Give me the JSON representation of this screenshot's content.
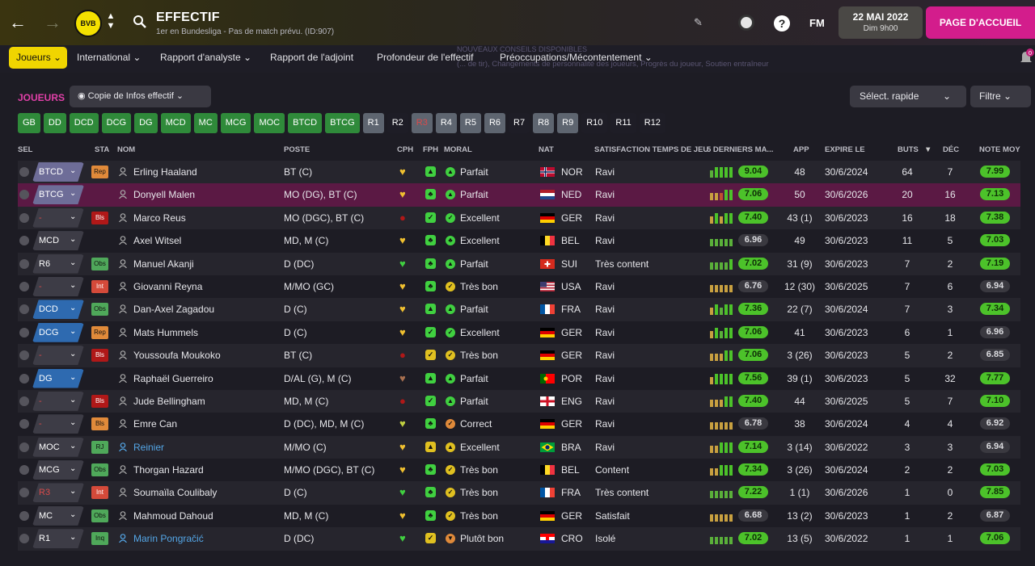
{
  "header": {
    "title": "EFFECTIF",
    "subtitle": "1er en Bundesliga - Pas de match prévu. (ID:907)",
    "crest_text": "BVB",
    "date": "22 MAI 2022",
    "time": "Dim 9h00",
    "home_button": "PAGE D'ACCUEIL",
    "fm_logo": "FM",
    "help_label": "?"
  },
  "menu": {
    "active": "Joueurs",
    "items": [
      "International",
      "Rapport d'analyste",
      "Rapport de l'adjoint",
      "Profondeur de l'effectif",
      "Préoccupations/Mécontentement"
    ],
    "ghost1": "NOUVEAUX CONSEILS DISPONIBLES",
    "ghost2": "(... de tir), Changements de personnalité des joueurs, Progrès du joueur, Soutien entraîneur",
    "notification_count": "0"
  },
  "section": {
    "title": "JOUEURS",
    "copy_button": "Copie de Infos effectif",
    "quick_select": "Sélect. rapide",
    "filter": "Filtre"
  },
  "position_chips": [
    {
      "label": "GB",
      "style": "g"
    },
    {
      "label": "DD",
      "style": "g"
    },
    {
      "label": "DCD",
      "style": "g"
    },
    {
      "label": "DCG",
      "style": "g"
    },
    {
      "label": "DG",
      "style": "g"
    },
    {
      "label": "MCD",
      "style": "g"
    },
    {
      "label": "MC",
      "style": "g"
    },
    {
      "label": "MCG",
      "style": "g"
    },
    {
      "label": "MOC",
      "style": "g"
    },
    {
      "label": "BTCD",
      "style": "g"
    },
    {
      "label": "BTCG",
      "style": "g"
    },
    {
      "label": "R1",
      "style": "s"
    },
    {
      "label": "R2",
      "style": "d"
    },
    {
      "label": "R3",
      "style": "r"
    },
    {
      "label": "R4",
      "style": "s"
    },
    {
      "label": "R5",
      "style": "s"
    },
    {
      "label": "R6",
      "style": "s"
    },
    {
      "label": "R7",
      "style": "d"
    },
    {
      "label": "R8",
      "style": "s"
    },
    {
      "label": "R9",
      "style": "s"
    },
    {
      "label": "R10",
      "style": "d"
    },
    {
      "label": "R11",
      "style": "d"
    },
    {
      "label": "R12",
      "style": "d"
    }
  ],
  "columns": {
    "sel": "SEL",
    "sta": "STA",
    "nom": "NOM",
    "poste": "POSTE",
    "cph": "CPH",
    "fph": "FPH",
    "moral": "MORAL",
    "nat": "NAT",
    "sat": "SATISFACTION TEMPS DE JEU",
    "last5": "5 DERNIERS MA...",
    "app": "APP",
    "expire": "EXPIRE LE",
    "buts": "BUTS",
    "dec": "DÉC",
    "note": "NOTE MOY"
  },
  "players": [
    {
      "pos": "BTCD",
      "pos_color": "#6e6d98",
      "sta": "Rep",
      "sta_color": "#e08a3a",
      "name": "Erling Haaland",
      "name_blue": false,
      "poste": "BT (C)",
      "cph": "#f0c030",
      "fph": "#40d040",
      "fph_glyph": "▲",
      "moral_color": "#40d040",
      "moral_glyph": "▲",
      "moral": "Parfait",
      "flag": "nor",
      "nat": "NOR",
      "sat": "Ravi",
      "bars": [
        "#5ab03a",
        "#4cc22a",
        "#4cc22a",
        "#4cc22a",
        "#4cc22a"
      ],
      "rating": "9.04",
      "rating_good": true,
      "app": "48",
      "expire": "30/6/2024",
      "buts": "64",
      "dec": "7",
      "note": "7.99",
      "note_good": true,
      "row": "alt"
    },
    {
      "pos": "BTCG",
      "pos_color": "#6e6d98",
      "sta": "",
      "sta_color": "",
      "name": "Donyell Malen",
      "name_blue": false,
      "poste": "MO (DG), BT (C)",
      "cph": "#f0c030",
      "fph": "#40d040",
      "fph_glyph": "♣",
      "moral_color": "#40d040",
      "moral_glyph": "▲",
      "moral": "Parfait",
      "flag": "ned",
      "nat": "NED",
      "sat": "Ravi",
      "bars": [
        "#c8a040",
        "#c8a040",
        "#c05030",
        "#4cc22a",
        "#4cc22a"
      ],
      "rating": "7.06",
      "rating_good": true,
      "app": "50",
      "expire": "30/6/2026",
      "buts": "20",
      "dec": "16",
      "note": "7.13",
      "note_good": true,
      "row": "sel"
    },
    {
      "pos": "-",
      "pos_color": "#3d3c46",
      "sta": "Bls",
      "sta_color": "#b01818",
      "name": "Marco Reus",
      "name_blue": false,
      "poste": "MO (DGC), BT (C)",
      "cph": "#b01818",
      "fph": "#40d040",
      "fph_glyph": "✓",
      "moral_color": "#40d040",
      "moral_glyph": "✓",
      "moral": "Excellent",
      "flag": "ger",
      "nat": "GER",
      "sat": "Ravi",
      "bars": [
        "#c8a040",
        "#4cc22a",
        "#c8a040",
        "#4cc22a",
        "#4cc22a"
      ],
      "rating": "7.40",
      "rating_good": true,
      "app": "43 (1)",
      "expire": "30/6/2023",
      "buts": "16",
      "dec": "18",
      "note": "7.38",
      "note_good": true,
      "row": "alt"
    },
    {
      "pos": "MCD",
      "pos_color": "#3d3c46",
      "sta": "",
      "sta_color": "",
      "name": "Axel Witsel",
      "name_blue": false,
      "poste": "MD, M (C)",
      "cph": "#f0c030",
      "fph": "#40d040",
      "fph_glyph": "♣",
      "moral_color": "#40d040",
      "moral_glyph": "♣",
      "moral": "Excellent",
      "flag": "bel",
      "nat": "BEL",
      "sat": "Ravi",
      "bars": [
        "#5ab03a",
        "#5ab03a",
        "#5ab03a",
        "#5ab03a",
        "#5ab03a"
      ],
      "rating": "6.96",
      "rating_good": false,
      "app": "49",
      "expire": "30/6/2023",
      "buts": "11",
      "dec": "5",
      "note": "7.03",
      "note_good": true,
      "row": ""
    },
    {
      "pos": "R6",
      "pos_color": "#3d3c46",
      "sta": "Obs",
      "sta_color": "#4fa85a",
      "name": "Manuel Akanji",
      "name_blue": false,
      "poste": "D (DC)",
      "cph": "#40d040",
      "fph": "#40d040",
      "fph_glyph": "♣",
      "moral_color": "#40d040",
      "moral_glyph": "▲",
      "moral": "Parfait",
      "flag": "sui",
      "nat": "SUI",
      "sat": "Très content",
      "bars": [
        "#5ab03a",
        "#5ab03a",
        "#5ab03a",
        "#5ab03a",
        "#4cc22a"
      ],
      "rating": "7.02",
      "rating_good": true,
      "app": "31 (9)",
      "expire": "30/6/2023",
      "buts": "7",
      "dec": "2",
      "note": "7.19",
      "note_good": true,
      "row": "alt"
    },
    {
      "pos": "-",
      "pos_color": "#3d3c46",
      "sta": "Int",
      "sta_color": "#d44a3a",
      "name": "Giovanni Reyna",
      "name_blue": false,
      "poste": "M/MO (GC)",
      "cph": "#f0c030",
      "fph": "#40d040",
      "fph_glyph": "♣",
      "moral_color": "#e0c020",
      "moral_glyph": "✓",
      "moral": "Très bon",
      "flag": "usa",
      "nat": "USA",
      "sat": "Ravi",
      "bars": [
        "#c8a040",
        "#c8a040",
        "#c8a040",
        "#c8a040",
        "#c8a040"
      ],
      "rating": "6.76",
      "rating_good": false,
      "app": "12 (30)",
      "expire": "30/6/2025",
      "buts": "7",
      "dec": "6",
      "note": "6.94",
      "note_good": false,
      "row": ""
    },
    {
      "pos": "DCD",
      "pos_color": "#2e6ab0",
      "sta": "Obs",
      "sta_color": "#4fa85a",
      "name": "Dan-Axel Zagadou",
      "name_blue": false,
      "poste": "D (C)",
      "cph": "#f0c030",
      "fph": "#40d040",
      "fph_glyph": "▲",
      "moral_color": "#40d040",
      "moral_glyph": "▲",
      "moral": "Parfait",
      "flag": "fra",
      "nat": "FRA",
      "sat": "Ravi",
      "bars": [
        "#c8a040",
        "#4cc22a",
        "#5ab03a",
        "#4cc22a",
        "#4cc22a"
      ],
      "rating": "7.36",
      "rating_good": true,
      "app": "22 (7)",
      "expire": "30/6/2024",
      "buts": "7",
      "dec": "3",
      "note": "7.34",
      "note_good": true,
      "row": "alt"
    },
    {
      "pos": "DCG",
      "pos_color": "#2e6ab0",
      "sta": "Rep",
      "sta_color": "#e08a3a",
      "name": "Mats Hummels",
      "name_blue": false,
      "poste": "D (C)",
      "cph": "#f0c030",
      "fph": "#40d040",
      "fph_glyph": "✓",
      "moral_color": "#40d040",
      "moral_glyph": "✓",
      "moral": "Excellent",
      "flag": "ger",
      "nat": "GER",
      "sat": "Ravi",
      "bars": [
        "#c8a040",
        "#4cc22a",
        "#5ab03a",
        "#4cc22a",
        "#4cc22a"
      ],
      "rating": "7.06",
      "rating_good": true,
      "app": "41",
      "expire": "30/6/2023",
      "buts": "6",
      "dec": "1",
      "note": "6.96",
      "note_good": false,
      "row": ""
    },
    {
      "pos": "-",
      "pos_color": "#3d3c46",
      "sta": "Bls",
      "sta_color": "#b01818",
      "name": "Youssoufa Moukoko",
      "name_blue": false,
      "poste": "BT (C)",
      "cph": "#b01818",
      "fph": "#e0c020",
      "fph_glyph": "✓",
      "moral_color": "#e0c020",
      "moral_glyph": "✓",
      "moral": "Très bon",
      "flag": "ger",
      "nat": "GER",
      "sat": "Ravi",
      "bars": [
        "#c8a040",
        "#c8a040",
        "#c8a040",
        "#4cc22a",
        "#4cc22a"
      ],
      "rating": "7.06",
      "rating_good": true,
      "app": "3 (26)",
      "expire": "30/6/2023",
      "buts": "5",
      "dec": "2",
      "note": "6.85",
      "note_good": false,
      "row": "alt"
    },
    {
      "pos": "DG",
      "pos_color": "#2e6ab0",
      "sta": "",
      "sta_color": "",
      "name": "Raphaël Guerreiro",
      "name_blue": false,
      "poste": "D/AL (G), M (C)",
      "cph": "#a87050",
      "fph": "#40d040",
      "fph_glyph": "▲",
      "moral_color": "#40d040",
      "moral_glyph": "▲",
      "moral": "Parfait",
      "flag": "por",
      "nat": "POR",
      "sat": "Ravi",
      "bars": [
        "#c8a040",
        "#4cc22a",
        "#4cc22a",
        "#4cc22a",
        "#4cc22a"
      ],
      "rating": "7.56",
      "rating_good": true,
      "app": "39 (1)",
      "expire": "30/6/2023",
      "buts": "5",
      "dec": "32",
      "note": "7.77",
      "note_good": true,
      "row": ""
    },
    {
      "pos": "-",
      "pos_color": "#3d3c46",
      "sta": "Bls",
      "sta_color": "#b01818",
      "name": "Jude Bellingham",
      "name_blue": false,
      "poste": "MD, M (C)",
      "cph": "#b01818",
      "fph": "#40d040",
      "fph_glyph": "✓",
      "moral_color": "#40d040",
      "moral_glyph": "▲",
      "moral": "Parfait",
      "flag": "eng",
      "nat": "ENG",
      "sat": "Ravi",
      "bars": [
        "#c8a040",
        "#c8a040",
        "#c8a040",
        "#4cc22a",
        "#4cc22a"
      ],
      "rating": "7.40",
      "rating_good": true,
      "app": "44",
      "expire": "30/6/2025",
      "buts": "5",
      "dec": "7",
      "note": "7.10",
      "note_good": true,
      "row": "alt"
    },
    {
      "pos": "-",
      "pos_color": "#3d3c46",
      "sta": "Bls",
      "sta_color": "#e08a3a",
      "name": "Emre Can",
      "name_blue": false,
      "poste": "D (DC), MD, M (C)",
      "cph": "#c0d040",
      "fph": "#40d040",
      "fph_glyph": "♣",
      "moral_color": "#e08a3a",
      "moral_glyph": "✓",
      "moral": "Correct",
      "flag": "ger",
      "nat": "GER",
      "sat": "Ravi",
      "bars": [
        "#c8a040",
        "#c8a040",
        "#c8a040",
        "#c8a040",
        "#c8a040"
      ],
      "rating": "6.78",
      "rating_good": false,
      "app": "38",
      "expire": "30/6/2024",
      "buts": "4",
      "dec": "4",
      "note": "6.92",
      "note_good": false,
      "row": ""
    },
    {
      "pos": "MOC",
      "pos_color": "#3d3c46",
      "sta": "RJ",
      "sta_color": "#4fa85a",
      "name": "Reinier",
      "name_blue": true,
      "poste": "M/MO (C)",
      "cph": "#f0c030",
      "fph": "#e0c020",
      "fph_glyph": "▲",
      "moral_color": "#e0c020",
      "moral_glyph": "▲",
      "moral": "Excellent",
      "flag": "bra",
      "nat": "BRA",
      "sat": "Ravi",
      "bars": [
        "#c8a040",
        "#c8a040",
        "#4cc22a",
        "#4cc22a",
        "#4cc22a"
      ],
      "rating": "7.14",
      "rating_good": true,
      "app": "3 (14)",
      "expire": "30/6/2022",
      "buts": "3",
      "dec": "3",
      "note": "6.94",
      "note_good": false,
      "row": "alt"
    },
    {
      "pos": "MCG",
      "pos_color": "#3d3c46",
      "sta": "Obs",
      "sta_color": "#4fa85a",
      "name": "Thorgan Hazard",
      "name_blue": false,
      "poste": "M/MO (DGC), BT (C)",
      "cph": "#f0c030",
      "fph": "#40d040",
      "fph_glyph": "♣",
      "moral_color": "#e0c020",
      "moral_glyph": "✓",
      "moral": "Très bon",
      "flag": "bel",
      "nat": "BEL",
      "sat": "Content",
      "bars": [
        "#c8a040",
        "#c8a040",
        "#4cc22a",
        "#4cc22a",
        "#4cc22a"
      ],
      "rating": "7.34",
      "rating_good": true,
      "app": "3 (26)",
      "expire": "30/6/2024",
      "buts": "2",
      "dec": "2",
      "note": "7.03",
      "note_good": true,
      "row": ""
    },
    {
      "pos": "R3",
      "pos_color": "#3d3c46",
      "sta": "Int",
      "sta_color": "#d44a3a",
      "name": "Soumaïla Coulibaly",
      "name_blue": false,
      "poste": "D (C)",
      "cph": "#40d040",
      "fph": "#40d040",
      "fph_glyph": "♣",
      "moral_color": "#e0c020",
      "moral_glyph": "✓",
      "moral": "Très bon",
      "flag": "fra",
      "nat": "FRA",
      "sat": "Très content",
      "bars": [
        "#5ab03a",
        "#5ab03a",
        "#5ab03a",
        "#5ab03a",
        "#5ab03a"
      ],
      "rating": "7.22",
      "rating_good": true,
      "app": "1 (1)",
      "expire": "30/6/2026",
      "buts": "1",
      "dec": "0",
      "note": "7.85",
      "note_good": true,
      "row": "alt"
    },
    {
      "pos": "MC",
      "pos_color": "#3d3c46",
      "sta": "Obs",
      "sta_color": "#4fa85a",
      "name": "Mahmoud Dahoud",
      "name_blue": false,
      "poste": "MD, M (C)",
      "cph": "#f0c030",
      "fph": "#40d040",
      "fph_glyph": "♣",
      "moral_color": "#e0c020",
      "moral_glyph": "✓",
      "moral": "Très bon",
      "flag": "ger",
      "nat": "GER",
      "sat": "Satisfait",
      "bars": [
        "#c8a040",
        "#c8a040",
        "#c8a040",
        "#c8a040",
        "#c8a040"
      ],
      "rating": "6.68",
      "rating_good": false,
      "app": "13 (2)",
      "expire": "30/6/2023",
      "buts": "1",
      "dec": "2",
      "note": "6.87",
      "note_good": false,
      "row": ""
    },
    {
      "pos": "R1",
      "pos_color": "#3d3c46",
      "sta": "Inq",
      "sta_color": "#4fa85a",
      "name": "Marin Pongračić",
      "name_blue": true,
      "poste": "D (DC)",
      "cph": "#40d040",
      "fph": "#e0c020",
      "fph_glyph": "✓",
      "moral_color": "#e08a3a",
      "moral_glyph": "▼",
      "moral": "Plutôt bon",
      "flag": "cro",
      "nat": "CRO",
      "sat": "Isolé",
      "bars": [
        "#5ab03a",
        "#5ab03a",
        "#5ab03a",
        "#5ab03a",
        "#5ab03a"
      ],
      "rating": "7.02",
      "rating_good": true,
      "app": "13 (5)",
      "expire": "30/6/2022",
      "buts": "1",
      "dec": "1",
      "note": "7.06",
      "note_good": true,
      "row": "alt"
    }
  ]
}
